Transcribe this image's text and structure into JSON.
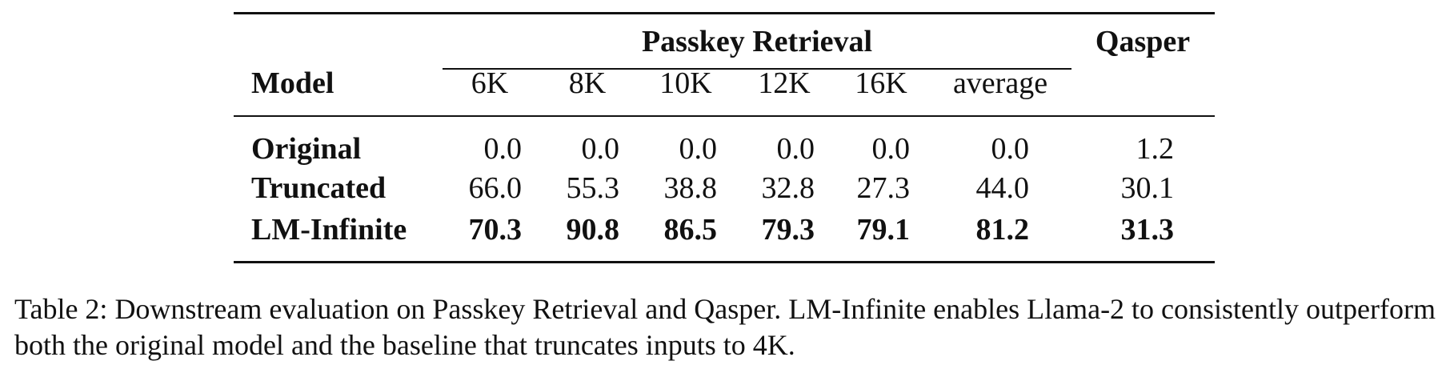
{
  "table": {
    "group_header": "Passkey Retrieval",
    "qasper_header": "Qasper",
    "model_header": "Model",
    "columns": [
      "6K",
      "8K",
      "10K",
      "12K",
      "16K",
      "average"
    ],
    "rows": [
      {
        "model": "Original",
        "values": [
          "0.0",
          "0.0",
          "0.0",
          "0.0",
          "0.0",
          "0.0"
        ],
        "qasper": "1.2",
        "bold": false
      },
      {
        "model": "Truncated",
        "values": [
          "66.0",
          "55.3",
          "38.8",
          "32.8",
          "27.3",
          "44.0"
        ],
        "qasper": "30.1",
        "bold": false
      },
      {
        "model": "LM-Infinite",
        "values": [
          "70.3",
          "90.8",
          "86.5",
          "79.3",
          "79.1",
          "81.2"
        ],
        "qasper": "31.3",
        "bold": true
      }
    ]
  },
  "caption": "Table 2: Downstream evaluation on Passkey Retrieval and Qasper. LM-Infinite enables Llama-2 to consistently outperform both the original model and the baseline that truncates inputs to 4K."
}
